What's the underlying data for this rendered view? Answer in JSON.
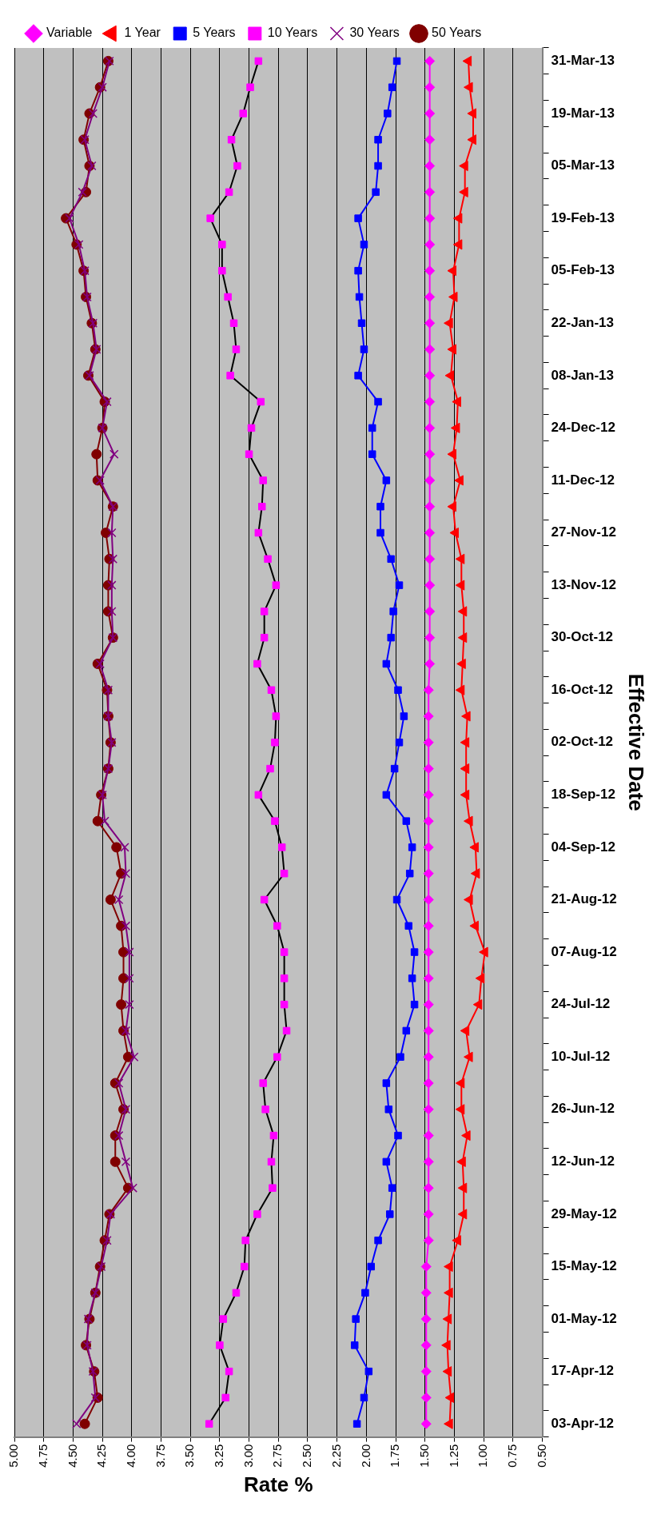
{
  "chart_data": {
    "type": "line",
    "orientation": "horizontal",
    "xlabel": "Rate %",
    "ylabel": "Effective Date",
    "legend": "top left",
    "grid": "x",
    "line_style": "solid",
    "categories": [
      "31-Mar-13",
      null,
      "19-Mar-13",
      null,
      "05-Mar-13",
      null,
      "19-Feb-13",
      null,
      "05-Feb-13",
      null,
      "22-Jan-13",
      null,
      "08-Jan-13",
      null,
      "24-Dec-12",
      null,
      "11-Dec-12",
      null,
      "27-Nov-12",
      null,
      "13-Nov-12",
      null,
      "30-Oct-12",
      null,
      "16-Oct-12",
      null,
      "02-Oct-12",
      null,
      "18-Sep-12",
      null,
      "04-Sep-12",
      null,
      "21-Aug-12",
      null,
      "07-Aug-12",
      null,
      "24-Jul-12",
      null,
      "10-Jul-12",
      null,
      "26-Jun-12",
      null,
      "12-Jun-12",
      null,
      "29-May-12",
      null,
      "15-May-12",
      null,
      "01-May-12",
      null,
      "17-Apr-12",
      null,
      "03-Apr-12"
    ],
    "xlim": [
      5.0,
      0.5
    ],
    "xticks": [
      {
        "value": 5.0,
        "label": "5.00"
      },
      {
        "value": 4.75,
        "label": "4.75"
      },
      {
        "value": 4.5,
        "label": "4.50"
      },
      {
        "value": 4.25,
        "label": "4.25"
      },
      {
        "value": 4.0,
        "label": "4.00"
      },
      {
        "value": 3.75,
        "label": "3.75"
      },
      {
        "value": 3.5,
        "label": "3.50"
      },
      {
        "value": 3.25,
        "label": "3.25"
      },
      {
        "value": 3.0,
        "label": "3.00"
      },
      {
        "value": 2.75,
        "label": "2.75"
      },
      {
        "value": 2.5,
        "label": "2.50"
      },
      {
        "value": 2.25,
        "label": "2.25"
      },
      {
        "value": 2.0,
        "label": "2.00"
      },
      {
        "value": 1.75,
        "label": "1.75"
      },
      {
        "value": 1.5,
        "label": "1.50"
      },
      {
        "value": 1.25,
        "label": "1.25"
      },
      {
        "value": 1.0,
        "label": "1.00"
      },
      {
        "value": 0.75,
        "label": "0.75"
      },
      {
        "value": 0.5,
        "label": "0.50"
      }
    ],
    "series": [
      {
        "name": "Variable",
        "color": "#ff00ff",
        "marker": "diamond",
        "values": [
          1.46,
          1.46,
          1.46,
          1.46,
          1.46,
          1.46,
          1.46,
          1.46,
          1.46,
          1.46,
          1.46,
          1.46,
          1.46,
          1.46,
          1.46,
          1.46,
          1.46,
          1.46,
          1.46,
          1.46,
          1.46,
          1.46,
          1.46,
          1.46,
          1.47,
          1.47,
          1.47,
          1.47,
          1.47,
          1.47,
          1.47,
          1.47,
          1.47,
          1.47,
          1.47,
          1.47,
          1.47,
          1.47,
          1.47,
          1.47,
          1.47,
          1.47,
          1.47,
          1.47,
          1.47,
          1.47,
          1.49,
          1.49,
          1.49,
          1.49,
          1.49,
          1.49,
          1.49
        ]
      },
      {
        "name": "1 Year",
        "color": "#ff0000",
        "marker": "triangle",
        "values": [
          1.13,
          1.12,
          1.09,
          1.09,
          1.16,
          1.16,
          1.21,
          1.21,
          1.26,
          1.25,
          1.29,
          1.26,
          1.28,
          1.22,
          1.23,
          1.26,
          1.2,
          1.26,
          1.24,
          1.19,
          1.19,
          1.17,
          1.17,
          1.18,
          1.19,
          1.14,
          1.15,
          1.15,
          1.15,
          1.12,
          1.07,
          1.06,
          1.12,
          1.07,
          0.99,
          1.02,
          1.04,
          1.15,
          1.12,
          1.19,
          1.19,
          1.14,
          1.18,
          1.17,
          1.17,
          1.22,
          1.29,
          1.29,
          1.3,
          1.31,
          1.3,
          1.28,
          1.29
        ]
      },
      {
        "name": "5 Years",
        "color": "#0000ff",
        "marker": "square",
        "values": [
          1.74,
          1.78,
          1.82,
          1.9,
          1.9,
          1.92,
          2.07,
          2.02,
          2.07,
          2.06,
          2.04,
          2.02,
          2.07,
          1.9,
          1.95,
          1.95,
          1.83,
          1.88,
          1.88,
          1.79,
          1.72,
          1.77,
          1.79,
          1.83,
          1.73,
          1.68,
          1.72,
          1.76,
          1.83,
          1.66,
          1.61,
          1.63,
          1.74,
          1.64,
          1.59,
          1.61,
          1.59,
          1.66,
          1.71,
          1.83,
          1.81,
          1.73,
          1.83,
          1.78,
          1.8,
          1.9,
          1.96,
          2.01,
          2.09,
          2.1,
          1.98,
          2.02,
          2.08
        ]
      },
      {
        "name": "10 Years",
        "color": "#000000",
        "marker": "square",
        "colors": [
          "#ff00ff",
          "#ff00ff",
          "#ff00ff",
          "#ff00ff",
          "#ff00ff",
          "#ff00ff",
          "#ff00ff",
          "#ff00ff",
          "#ff00ff",
          "#ff00ff",
          "#ff00ff",
          "#ff00ff",
          "#ff00ff",
          "#ff00ff",
          "#ff00ff",
          "#ff00ff",
          "#ff00ff",
          "#ff00ff",
          "#ff00ff",
          "#ff00ff",
          "#ff00ff",
          "#ff00ff",
          "#ff00ff",
          "#ff00ff",
          "#ff00ff",
          "#ff00ff",
          "#ff00ff",
          "#ff00ff",
          "#ff00ff",
          "#ff00ff",
          "#ff00ff",
          "#ff00ff",
          "#ff00ff",
          "#ff00ff",
          "#ff00ff",
          "#ff00ff",
          "#ff00ff",
          "#ff00ff",
          "#ff00ff",
          "#ff00ff",
          "#ff00ff",
          "#ff00ff",
          "#ff00ff",
          "#ff00ff",
          "#ff00ff",
          "#ff00ff",
          "#ff00ff",
          "#ff00ff",
          "#ff00ff",
          "#ff00ff",
          "#ff00ff",
          "#ff00ff",
          "#ff00ff"
        ],
        "values": [
          2.92,
          2.99,
          3.05,
          3.15,
          3.1,
          3.17,
          3.33,
          3.23,
          3.23,
          3.18,
          3.13,
          3.11,
          3.16,
          2.9,
          2.98,
          3.0,
          2.88,
          2.89,
          2.92,
          2.84,
          2.77,
          2.87,
          2.87,
          2.93,
          2.81,
          2.77,
          2.78,
          2.82,
          2.92,
          2.78,
          2.72,
          2.7,
          2.87,
          2.76,
          2.7,
          2.7,
          2.7,
          2.68,
          2.76,
          2.88,
          2.86,
          2.79,
          2.81,
          2.8,
          2.93,
          3.03,
          3.04,
          3.11,
          3.22,
          3.25,
          3.17,
          3.2,
          3.34
        ]
      },
      {
        "name": "30 Years",
        "color": "#800080",
        "marker": "cross",
        "values": [
          4.19,
          4.25,
          4.33,
          4.4,
          4.34,
          4.42,
          4.53,
          4.45,
          4.4,
          4.38,
          4.33,
          4.3,
          4.36,
          4.21,
          4.25,
          4.15,
          4.27,
          4.16,
          4.17,
          4.16,
          4.17,
          4.17,
          4.16,
          4.27,
          4.2,
          4.2,
          4.17,
          4.2,
          4.25,
          4.23,
          4.06,
          4.05,
          4.11,
          4.05,
          4.02,
          4.02,
          4.02,
          4.05,
          3.98,
          4.11,
          4.05,
          4.11,
          4.05,
          3.99,
          4.18,
          4.21,
          4.26,
          4.31,
          4.37,
          4.38,
          4.33,
          4.31,
          4.47
        ]
      },
      {
        "name": "50 Years",
        "color": "#800000",
        "marker": "circle",
        "values": [
          4.2,
          4.27,
          4.36,
          4.41,
          4.36,
          4.39,
          4.56,
          4.47,
          4.41,
          4.39,
          4.34,
          4.31,
          4.37,
          4.23,
          4.25,
          4.3,
          4.29,
          4.16,
          4.22,
          4.19,
          4.2,
          4.2,
          4.16,
          4.29,
          4.21,
          4.2,
          4.18,
          4.2,
          4.26,
          4.29,
          4.13,
          4.09,
          4.18,
          4.09,
          4.07,
          4.07,
          4.09,
          4.07,
          4.03,
          4.14,
          4.07,
          4.14,
          4.14,
          4.03,
          4.19,
          4.23,
          4.27,
          4.31,
          4.36,
          4.39,
          4.32,
          4.29,
          4.4
        ]
      }
    ]
  }
}
